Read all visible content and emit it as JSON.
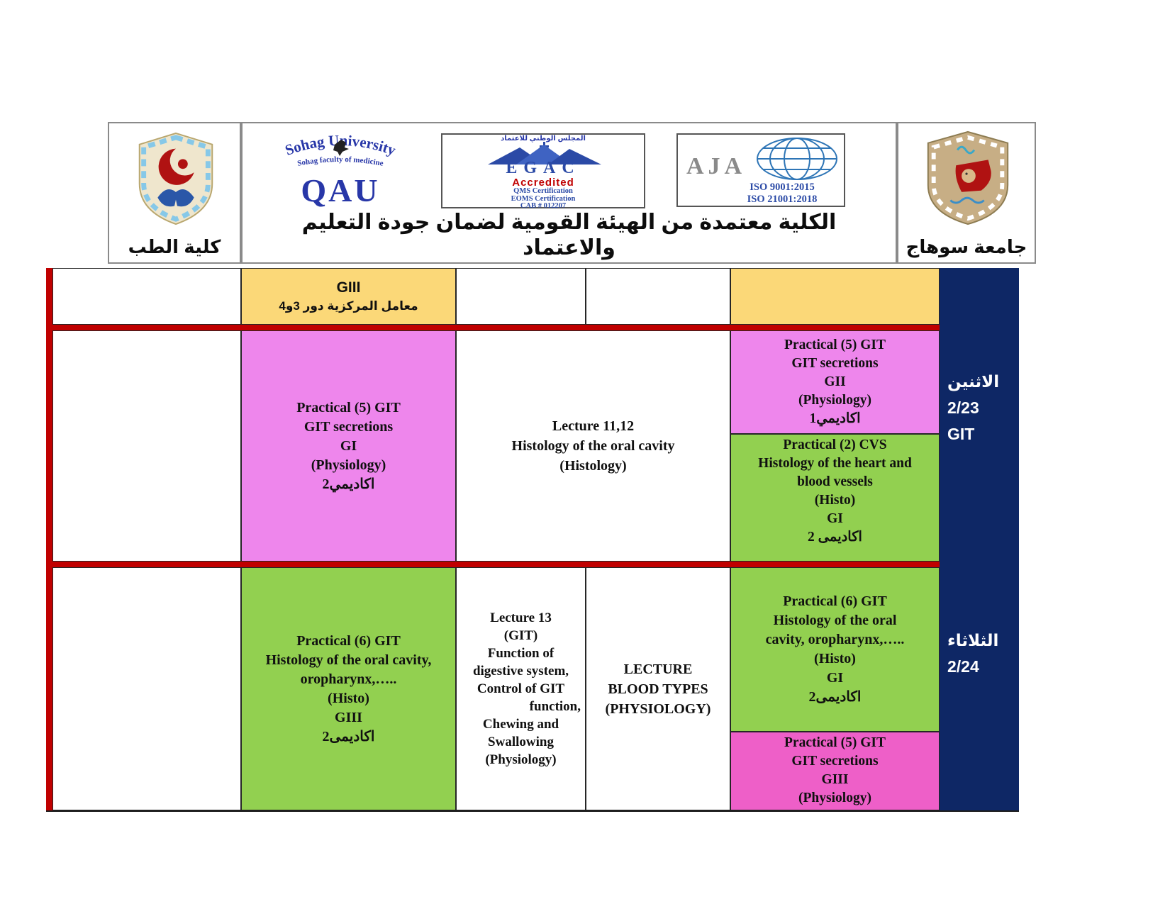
{
  "header": {
    "faculty_box": {
      "caption": "كلية الطب"
    },
    "middle_box": {
      "qau": {
        "arc_title": "Sohag University",
        "arc_subtitle": "Sohag faculty of medicine",
        "abbr": "QAU"
      },
      "egac": {
        "arabic_arc": "المجلس الوطني للاعتماد",
        "abbr": "EGAC",
        "accredited_label": "Accredited",
        "cert_lines": [
          "QMS Certification",
          "EOMS Certification",
          "CAB # 012207"
        ]
      },
      "aja": {
        "abbr": "AJA",
        "iso_lines": [
          "ISO 9001:2015",
          "ISO 21001:2018"
        ]
      },
      "accreditation_lines": [
        "الكلية معتمدة من الهيئة القومية لضمان جودة التعليم",
        "والاعتماد"
      ]
    },
    "university_box": {
      "caption": "جامعة سوهاج"
    }
  },
  "timetable": {
    "colors": {
      "yellow": "#FBD878",
      "pink": "#EE86EC",
      "magenta": "#EE5FC8",
      "green": "#92D050",
      "navy": "#0E2765",
      "red": "#C00000"
    },
    "lab_note": {
      "lines": [
        "GIII",
        "معامل المركزية دور 3و4"
      ]
    },
    "monday": {
      "day": {
        "lines": [
          "الاثنين",
          "2/23",
          "GIT"
        ]
      },
      "practical_physiology_gi": {
        "lines": [
          "Practical (5) GIT",
          "GIT secretions",
          "GI",
          "(Physiology)",
          "اكاديمي2"
        ]
      },
      "lecture_histology": {
        "lines": [
          "Lecture 11,12",
          "Histology of the oral cavity",
          "(Histology)"
        ]
      },
      "practical_physiology_gii": {
        "lines": [
          "Practical (5) GIT",
          "GIT secretions",
          "GII",
          "(Physiology)",
          "اكاديمي1"
        ]
      },
      "practical_cvs_histo": {
        "lines": [
          "Practical (2) CVS",
          "Histology of the heart and",
          "blood vessels",
          "(Histo)",
          "GI",
          "اكاديمى 2"
        ]
      }
    },
    "tuesday": {
      "day": {
        "lines": [
          "الثلاثاء",
          "2/24"
        ]
      },
      "practical_histo_giii": {
        "lines": [
          "Practical (6) GIT",
          "Histology of the oral cavity,",
          "oropharynx,…..",
          "(Histo)",
          "GIII",
          "اكاديمى2"
        ]
      },
      "lecture_13": {
        "lines": [
          "Lecture 13",
          "(GIT)",
          "Function of",
          "digestive system,",
          "Control of GIT",
          "function,",
          "Chewing and",
          "Swallowing",
          "(Physiology)"
        ]
      },
      "lecture_blood_types": {
        "lines": [
          "LECTURE",
          "BLOOD TYPES",
          "(PHYSIOLOGY)"
        ]
      },
      "practical_histo_gi": {
        "lines": [
          "Practical (6) GIT",
          "Histology of the oral",
          "cavity, oropharynx,…..",
          "(Histo)",
          "GI",
          "اكاديمى2"
        ]
      },
      "practical_physiology_giii": {
        "lines": [
          "Practical (5) GIT",
          "GIT secretions",
          "GIII",
          "(Physiology)"
        ]
      }
    }
  }
}
